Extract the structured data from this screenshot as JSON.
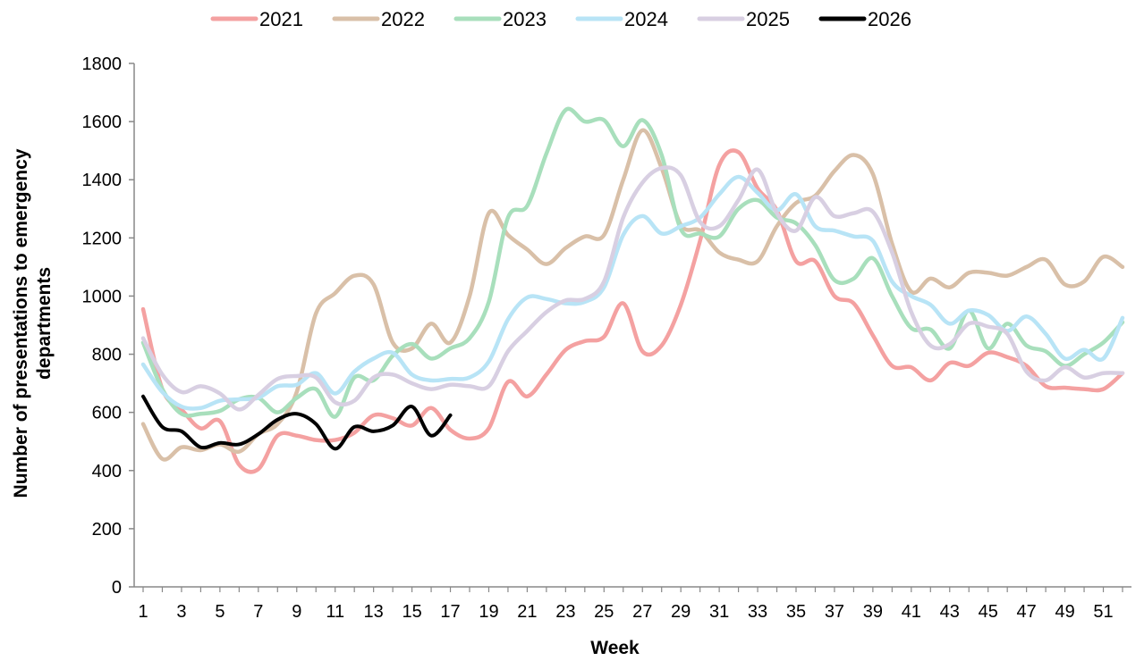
{
  "chart_data": {
    "type": "line",
    "xlabel": "Week",
    "ylabel_lines": [
      "Number of presentations  to emergency",
      "departments"
    ],
    "ylim": [
      0,
      1800
    ],
    "yticks": [
      0,
      200,
      400,
      600,
      800,
      1000,
      1200,
      1400,
      1600,
      1800
    ],
    "xlim": [
      1,
      52
    ],
    "xticks": [
      1,
      3,
      5,
      7,
      9,
      11,
      13,
      15,
      17,
      19,
      21,
      23,
      25,
      27,
      29,
      31,
      33,
      35,
      37,
      39,
      41,
      43,
      45,
      47,
      49,
      51
    ],
    "legend_position": "top",
    "grid": false,
    "series": [
      {
        "name": "2021",
        "color": "#f4a1a1",
        "x": [
          1,
          2,
          3,
          4,
          5,
          6,
          7,
          8,
          9,
          10,
          11,
          12,
          13,
          14,
          15,
          16,
          17,
          18,
          19,
          20,
          21,
          22,
          23,
          24,
          25,
          26,
          27,
          28,
          29,
          30,
          31,
          32,
          33,
          34,
          35,
          36,
          37,
          38,
          39,
          40,
          41,
          42,
          43,
          44,
          45,
          46,
          47,
          48,
          49,
          50,
          51,
          52
        ],
        "values": [
          955,
          680,
          610,
          545,
          570,
          420,
          405,
          520,
          520,
          505,
          505,
          530,
          590,
          580,
          555,
          615,
          540,
          510,
          545,
          705,
          655,
          730,
          815,
          845,
          860,
          975,
          810,
          830,
          970,
          1190,
          1450,
          1495,
          1370,
          1295,
          1120,
          1120,
          1000,
          975,
          865,
          760,
          755,
          710,
          770,
          760,
          805,
          790,
          760,
          690,
          685,
          680,
          680,
          735
        ]
      },
      {
        "name": "2022",
        "color": "#d9c0a8",
        "x": [
          1,
          2,
          3,
          4,
          5,
          6,
          7,
          8,
          9,
          10,
          11,
          12,
          13,
          14,
          15,
          16,
          17,
          18,
          19,
          20,
          21,
          22,
          23,
          24,
          25,
          26,
          27,
          28,
          29,
          30,
          31,
          32,
          33,
          34,
          35,
          36,
          37,
          38,
          39,
          40,
          41,
          42,
          43,
          44,
          45,
          46,
          47,
          48,
          49,
          50,
          51,
          52
        ],
        "values": [
          560,
          440,
          480,
          470,
          490,
          465,
          525,
          560,
          670,
          940,
          1010,
          1070,
          1040,
          840,
          820,
          905,
          840,
          1000,
          1285,
          1210,
          1160,
          1110,
          1165,
          1205,
          1210,
          1400,
          1570,
          1440,
          1245,
          1225,
          1150,
          1125,
          1120,
          1240,
          1320,
          1345,
          1430,
          1485,
          1420,
          1180,
          1015,
          1060,
          1030,
          1080,
          1080,
          1070,
          1100,
          1125,
          1040,
          1050,
          1135,
          1100
        ]
      },
      {
        "name": "2023",
        "color": "#a8dfbc",
        "x": [
          1,
          2,
          3,
          4,
          5,
          6,
          7,
          8,
          9,
          10,
          11,
          12,
          13,
          14,
          15,
          16,
          17,
          18,
          19,
          20,
          21,
          22,
          23,
          24,
          25,
          26,
          27,
          28,
          29,
          30,
          31,
          32,
          33,
          34,
          35,
          36,
          37,
          38,
          39,
          40,
          41,
          42,
          43,
          44,
          45,
          46,
          47,
          48,
          49,
          50,
          51,
          52
        ],
        "values": [
          840,
          680,
          595,
          595,
          605,
          645,
          650,
          600,
          650,
          680,
          585,
          720,
          710,
          795,
          835,
          785,
          820,
          855,
          980,
          1270,
          1310,
          1490,
          1640,
          1600,
          1605,
          1515,
          1605,
          1485,
          1230,
          1215,
          1205,
          1300,
          1330,
          1270,
          1250,
          1175,
          1055,
          1060,
          1130,
          1000,
          890,
          885,
          820,
          950,
          820,
          905,
          830,
          810,
          760,
          800,
          840,
          910
        ]
      },
      {
        "name": "2024",
        "color": "#b8e4f6",
        "x": [
          1,
          2,
          3,
          4,
          5,
          6,
          7,
          8,
          9,
          10,
          11,
          12,
          13,
          14,
          15,
          16,
          17,
          18,
          19,
          20,
          21,
          22,
          23,
          24,
          25,
          26,
          27,
          28,
          29,
          30,
          31,
          32,
          33,
          34,
          35,
          36,
          37,
          38,
          39,
          40,
          41,
          42,
          43,
          44,
          45,
          46,
          47,
          48,
          49,
          50,
          51,
          52
        ],
        "values": [
          765,
          670,
          620,
          615,
          640,
          645,
          650,
          690,
          695,
          735,
          665,
          740,
          785,
          805,
          730,
          710,
          715,
          720,
          775,
          920,
          995,
          990,
          975,
          980,
          1030,
          1210,
          1275,
          1215,
          1240,
          1270,
          1350,
          1410,
          1355,
          1295,
          1350,
          1240,
          1225,
          1205,
          1190,
          1050,
          1000,
          970,
          905,
          950,
          935,
          880,
          930,
          870,
          785,
          815,
          785,
          925
        ]
      },
      {
        "name": "2025",
        "color": "#d8cfe2",
        "x": [
          1,
          2,
          3,
          4,
          5,
          6,
          7,
          8,
          9,
          10,
          11,
          12,
          13,
          14,
          15,
          16,
          17,
          18,
          19,
          20,
          21,
          22,
          23,
          24,
          25,
          26,
          27,
          28,
          29,
          30,
          31,
          32,
          33,
          34,
          35,
          36,
          37,
          38,
          39,
          40,
          41,
          42,
          43,
          44,
          45,
          46,
          47,
          48,
          49,
          50,
          51,
          52
        ],
        "values": [
          855,
          730,
          670,
          690,
          665,
          610,
          660,
          715,
          725,
          720,
          635,
          640,
          720,
          730,
          700,
          680,
          695,
          690,
          690,
          810,
          880,
          945,
          985,
          990,
          1050,
          1270,
          1390,
          1440,
          1415,
          1255,
          1240,
          1330,
          1435,
          1285,
          1225,
          1340,
          1275,
          1285,
          1290,
          1150,
          945,
          830,
          835,
          905,
          895,
          870,
          740,
          710,
          755,
          720,
          735,
          735
        ]
      },
      {
        "name": "2026",
        "color": "#000000",
        "x": [
          1,
          2,
          3,
          4,
          5,
          6,
          7,
          8,
          9,
          10,
          11,
          12,
          13,
          14,
          15,
          16,
          17
        ],
        "values": [
          655,
          550,
          535,
          480,
          495,
          490,
          525,
          575,
          595,
          560,
          475,
          550,
          535,
          555,
          620,
          520,
          590
        ]
      }
    ]
  }
}
